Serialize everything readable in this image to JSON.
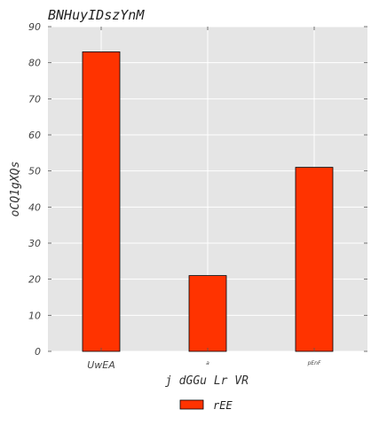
{
  "chart_data": {
    "type": "bar",
    "title": "BNHuyIDszYnM",
    "xlabel": "j dGGu Lr VR",
    "ylabel": "oCQ1gXQs",
    "categories": [
      "UwEA",
      "a",
      "pEnF"
    ],
    "series": [
      {
        "name": "rEE",
        "values": [
          83,
          21,
          51
        ],
        "color": "#ff3300"
      }
    ],
    "ylim": [
      0,
      90
    ],
    "yticks": [
      0,
      10,
      20,
      30,
      40,
      50,
      60,
      70,
      80,
      90
    ],
    "grid": true,
    "legend_position": "bottom-center",
    "background": "#e5e5e5"
  }
}
